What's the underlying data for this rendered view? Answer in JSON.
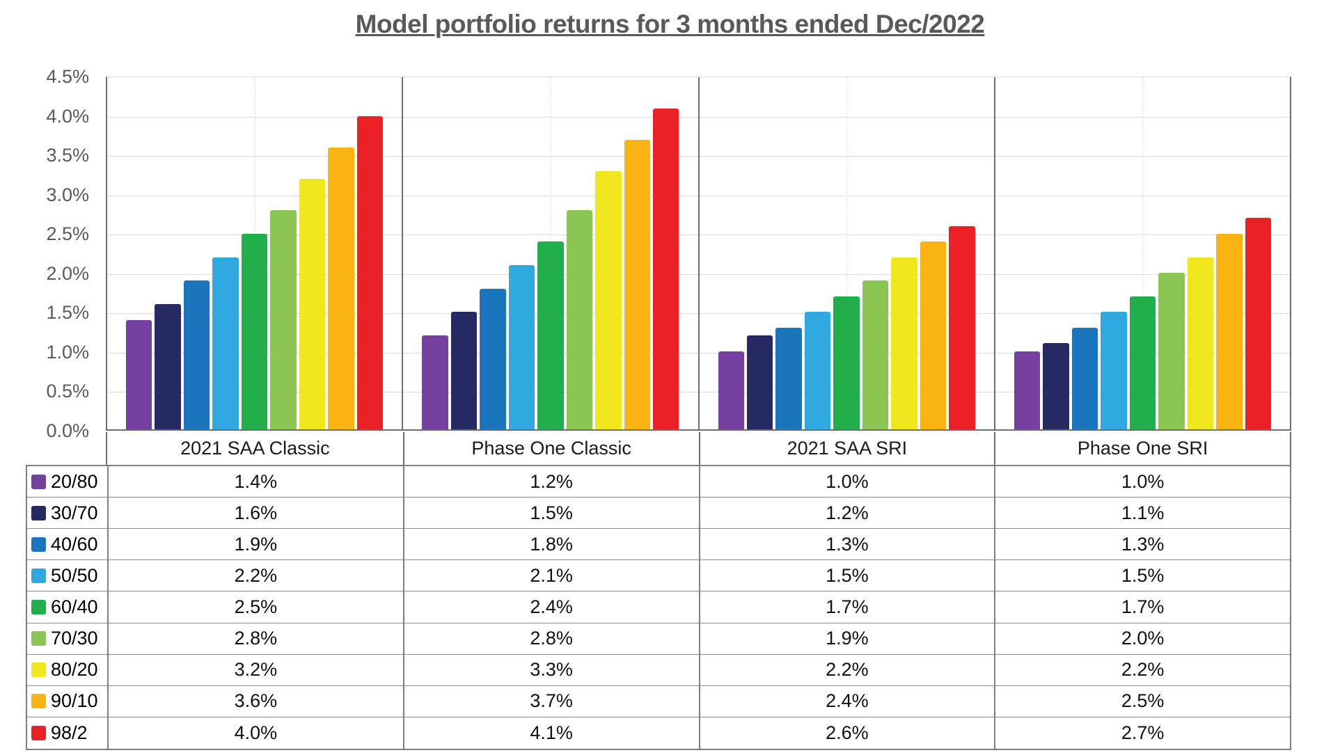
{
  "chart_data": {
    "type": "bar",
    "title": "Model portfolio returns for 3 months ended Dec/2022",
    "categories": [
      "20/80",
      "30/70",
      "40/60",
      "50/50",
      "60/40",
      "70/30",
      "80/20",
      "90/10",
      "98/2"
    ],
    "groups": [
      "2021 SAA Classic",
      "Phase One Classic",
      "2021 SAA SRI",
      "Phase One SRI"
    ],
    "series": [
      {
        "name": "2021 SAA Classic",
        "values": [
          1.4,
          1.6,
          1.9,
          2.2,
          2.5,
          2.8,
          3.2,
          3.6,
          4.0
        ]
      },
      {
        "name": "Phase One Classic",
        "values": [
          1.2,
          1.5,
          1.8,
          2.1,
          2.4,
          2.8,
          3.3,
          3.7,
          4.1
        ]
      },
      {
        "name": "2021 SAA SRI",
        "values": [
          1.0,
          1.2,
          1.3,
          1.5,
          1.7,
          1.9,
          2.2,
          2.4,
          2.6
        ]
      },
      {
        "name": "Phase One SRI",
        "values": [
          1.0,
          1.1,
          1.3,
          1.5,
          1.7,
          2.0,
          2.2,
          2.5,
          2.7
        ]
      }
    ],
    "colors": [
      "#7540A0",
      "#252A62",
      "#1B75BC",
      "#2FA9E0",
      "#21AF4B",
      "#8CC652",
      "#F0E81D",
      "#F9B313",
      "#EB2127"
    ],
    "ylim": [
      0,
      4.5
    ],
    "y_ticks": [
      "4.5%",
      "4.0%",
      "3.5%",
      "3.0%",
      "2.5%",
      "2.0%",
      "1.5%",
      "1.0%",
      "0.5%",
      "0.0%"
    ],
    "grid": true,
    "value_suffix": "%",
    "legend_position": "table-left",
    "axis_color": "#595959",
    "gridline_color": "#d9d9d9",
    "border_color": "#6f6f6f"
  }
}
